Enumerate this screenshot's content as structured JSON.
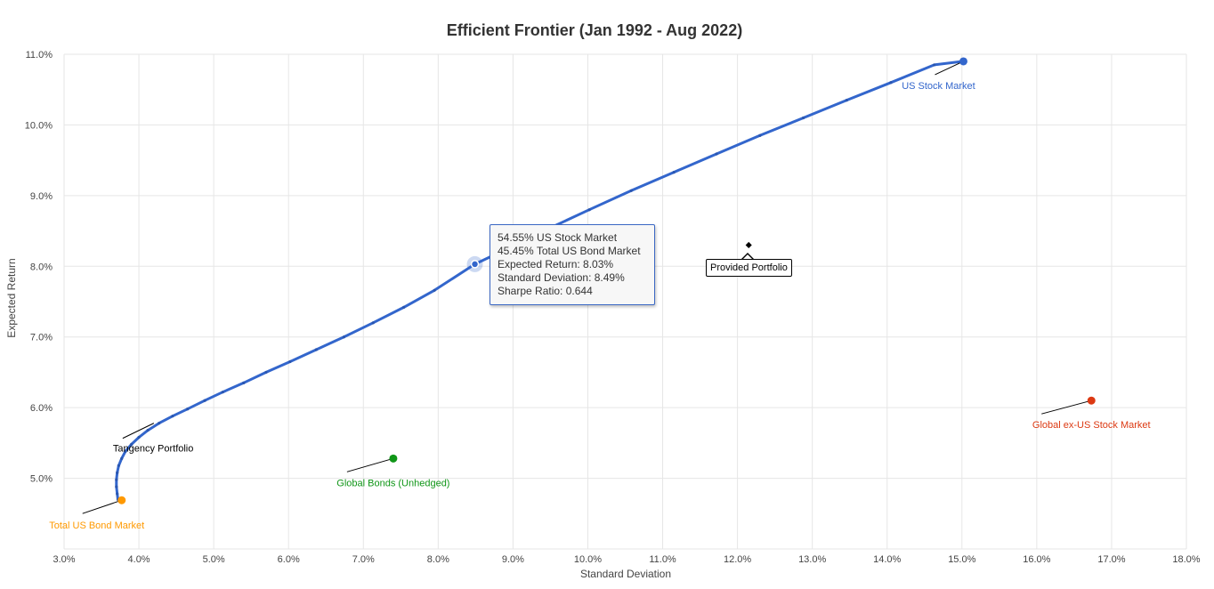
{
  "chart_data": {
    "type": "scatter",
    "title": "Efficient Frontier (Jan 1992 - Aug 2022)",
    "xlabel": "Standard Deviation",
    "ylabel": "Expected Return",
    "xlim": [
      3.0,
      18.0
    ],
    "ylim": [
      4.0,
      11.0
    ],
    "x_ticks": [
      "3.0%",
      "4.0%",
      "5.0%",
      "6.0%",
      "7.0%",
      "8.0%",
      "9.0%",
      "10.0%",
      "11.0%",
      "12.0%",
      "13.0%",
      "14.0%",
      "15.0%",
      "16.0%",
      "17.0%",
      "18.0%"
    ],
    "y_ticks": [
      "5.0%",
      "6.0%",
      "7.0%",
      "8.0%",
      "9.0%",
      "10.0%",
      "11.0%"
    ],
    "grid": true,
    "frontier": {
      "color": "#3366cc",
      "x": [
        3.72,
        3.71,
        3.7,
        3.7,
        3.71,
        3.73,
        3.77,
        3.82,
        3.9,
        4.0,
        4.12,
        4.27,
        4.45,
        4.65,
        4.88,
        5.12,
        5.4,
        5.7,
        6.02,
        6.37,
        6.74,
        7.13,
        7.54,
        7.95,
        8.49,
        8.93,
        9.47,
        10.02,
        10.58,
        11.15,
        11.72,
        12.3,
        12.88,
        13.46,
        14.05,
        14.63,
        15.02
      ],
      "y": [
        4.7,
        4.78,
        4.88,
        4.98,
        5.08,
        5.18,
        5.28,
        5.38,
        5.48,
        5.58,
        5.68,
        5.78,
        5.88,
        5.98,
        6.1,
        6.22,
        6.35,
        6.5,
        6.65,
        6.82,
        7.0,
        7.2,
        7.42,
        7.66,
        8.03,
        8.25,
        8.53,
        8.8,
        9.07,
        9.33,
        9.59,
        9.85,
        10.1,
        10.35,
        10.6,
        10.85,
        10.9
      ]
    },
    "points": [
      {
        "name": "US Stock Market",
        "x": 15.02,
        "y": 10.9,
        "color": "#3366cc"
      },
      {
        "name": "Total US Bond Market",
        "x": 3.77,
        "y": 4.69,
        "color": "#ff9900"
      },
      {
        "name": "Global Bonds (Unhedged)",
        "x": 7.4,
        "y": 5.28,
        "color": "#109618"
      },
      {
        "name": "Global ex-US Stock Market",
        "x": 16.73,
        "y": 6.1,
        "color": "#dc3912"
      },
      {
        "name": "Provided Portfolio",
        "x": 12.15,
        "y": 8.3,
        "color": "#000000"
      }
    ],
    "tangency_label": "Tangency Portfolio",
    "tangency_point": {
      "x": 4.2,
      "y": 5.78
    },
    "highlight": {
      "x": 8.49,
      "y": 8.03
    }
  },
  "tooltip": {
    "line1": "54.55% US Stock Market",
    "line2": "45.45% Total US Bond Market",
    "line3": "Expected Return: 8.03%",
    "line4": "Standard Deviation: 8.49%",
    "line5": "Sharpe Ratio: 0.644"
  },
  "callout": {
    "label": "Provided Portfolio"
  }
}
